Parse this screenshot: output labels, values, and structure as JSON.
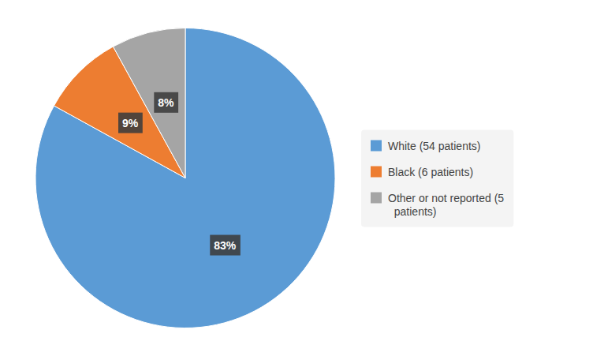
{
  "chart_data": {
    "type": "pie",
    "categories": [
      "White (54 patients)",
      "Black (6 patients)",
      "Other or not reported (5\n  patients)"
    ],
    "values": [
      83,
      9,
      8
    ],
    "value_labels": [
      "83%",
      "9%",
      "8%"
    ],
    "colors": [
      "#5B9BD5",
      "#ED7D31",
      "#A5A5A5"
    ],
    "data_labels": true,
    "legend": "right"
  }
}
